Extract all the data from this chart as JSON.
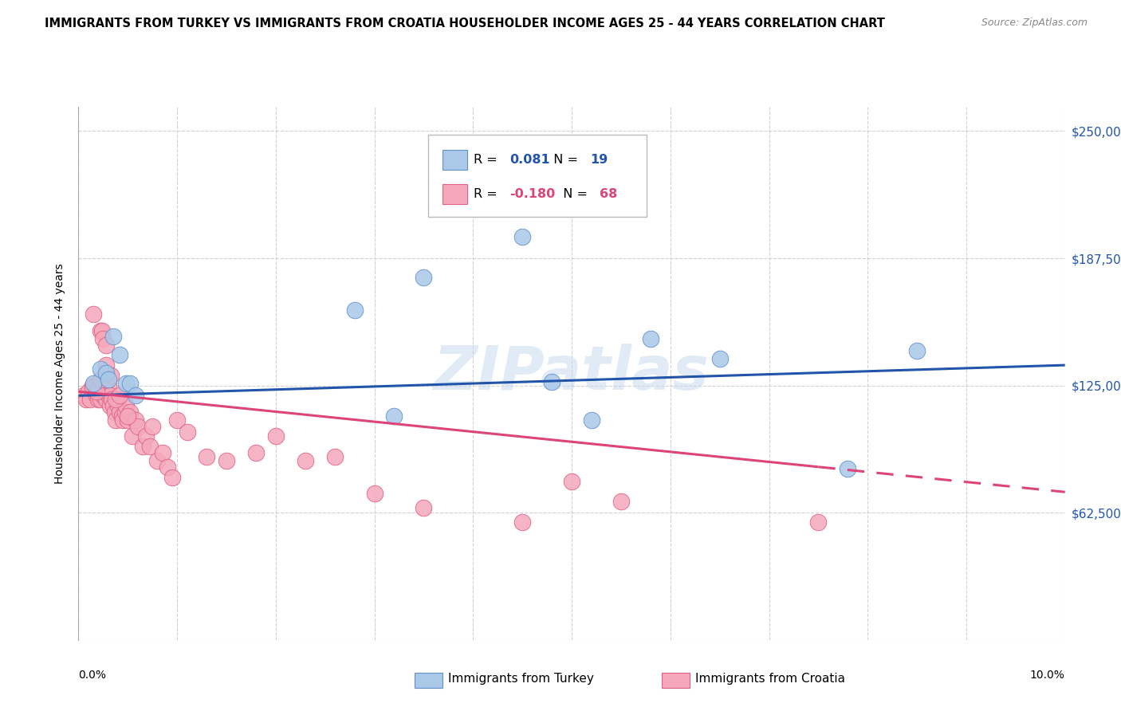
{
  "title": "IMMIGRANTS FROM TURKEY VS IMMIGRANTS FROM CROATIA HOUSEHOLDER INCOME AGES 25 - 44 YEARS CORRELATION CHART",
  "source": "Source: ZipAtlas.com",
  "ylabel": "Householder Income Ages 25 - 44 years",
  "yticks": [
    0,
    62500,
    125000,
    187500,
    250000
  ],
  "ytick_labels": [
    "",
    "$62,500",
    "$125,000",
    "$187,500",
    "$250,000"
  ],
  "xlim": [
    0.0,
    10.0
  ],
  "ylim": [
    0,
    262000
  ],
  "legend_label_turkey": "Immigrants from Turkey",
  "legend_label_croatia": "Immigrants from Croatia",
  "watermark": "ZIPatlas",
  "turkey_color": "#aac8e8",
  "croatia_color": "#f5a8bc",
  "turkey_edge_color": "#6090c8",
  "croatia_edge_color": "#e06080",
  "turkey_line_color": "#2255aa",
  "croatia_line_color": "#dd4477",
  "turkey_R": 0.081,
  "turkey_N": 19,
  "croatia_R": -0.18,
  "croatia_N": 68,
  "turkey_x": [
    0.15,
    0.22,
    0.28,
    0.35,
    0.42,
    0.48,
    0.52,
    0.58,
    2.8,
    3.2,
    3.5,
    4.5,
    4.8,
    5.2,
    5.8,
    6.5,
    7.8,
    8.5,
    0.3
  ],
  "turkey_y": [
    126000,
    133000,
    131000,
    149000,
    140000,
    126000,
    126000,
    120000,
    162000,
    110000,
    178000,
    198000,
    127000,
    108000,
    148000,
    138000,
    84000,
    142000,
    128000
  ],
  "croatia_x": [
    0.05,
    0.08,
    0.1,
    0.12,
    0.14,
    0.15,
    0.17,
    0.18,
    0.2,
    0.2,
    0.22,
    0.22,
    0.24,
    0.25,
    0.25,
    0.27,
    0.28,
    0.28,
    0.3,
    0.3,
    0.32,
    0.32,
    0.34,
    0.35,
    0.37,
    0.38,
    0.4,
    0.4,
    0.42,
    0.44,
    0.45,
    0.47,
    0.48,
    0.5,
    0.52,
    0.55,
    0.58,
    0.6,
    0.65,
    0.68,
    0.72,
    0.75,
    0.8,
    0.85,
    0.9,
    0.95,
    1.0,
    1.1,
    1.3,
    1.5,
    1.8,
    2.0,
    2.3,
    2.6,
    3.0,
    3.5,
    4.5,
    5.0,
    5.5,
    7.5,
    0.14,
    0.18,
    0.22,
    0.28,
    0.33,
    0.38,
    0.42,
    0.5
  ],
  "croatia_y": [
    120000,
    118000,
    122000,
    118000,
    125000,
    160000,
    123000,
    120000,
    120000,
    118000,
    118000,
    152000,
    152000,
    148000,
    120000,
    120000,
    145000,
    118000,
    125000,
    120000,
    120000,
    115000,
    118000,
    115000,
    112000,
    108000,
    115000,
    118000,
    112000,
    110000,
    108000,
    112000,
    115000,
    108000,
    112000,
    100000,
    108000,
    105000,
    95000,
    100000,
    95000,
    105000,
    88000,
    92000,
    85000,
    80000,
    108000,
    102000,
    90000,
    88000,
    92000,
    100000,
    88000,
    90000,
    72000,
    65000,
    58000,
    78000,
    68000,
    58000,
    124000,
    122000,
    128000,
    135000,
    130000,
    118000,
    120000,
    110000
  ],
  "turkey_line_x0": 0.0,
  "turkey_line_x1": 10.0,
  "croatia_solid_x1": 7.5,
  "croatia_dash_x1": 10.0
}
